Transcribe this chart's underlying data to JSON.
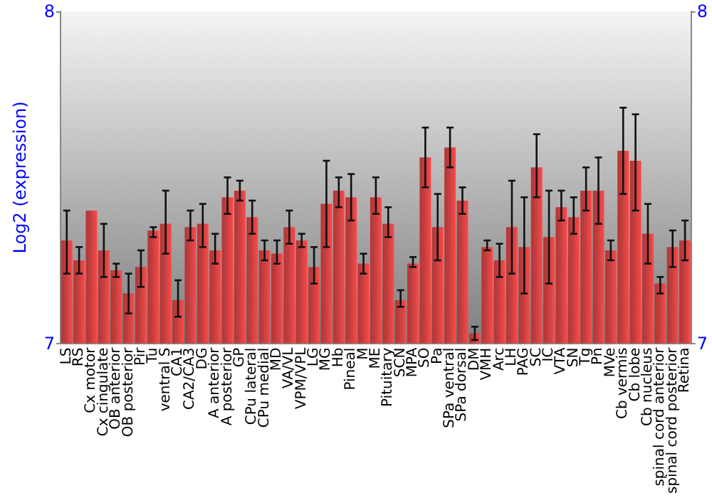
{
  "chart_data": {
    "type": "bar",
    "ylabel": "Log2 (expression)",
    "categories": [
      "LS",
      "RS",
      "Cx motor",
      "Cx cingulate",
      "OB anterior",
      "OB posterior",
      "Pir",
      "Tu",
      "ventral S",
      "CA1",
      "CA2/CA3",
      "DG",
      "A anterior",
      "A posterior",
      "GP",
      "CPu lateral",
      "CPu medial",
      "MD",
      "VA/VL",
      "VPM/VPL",
      "LG",
      "MG",
      "Hb",
      "Pineal",
      "M",
      "ME",
      "Pituitary",
      "SCN",
      "MPA",
      "SO",
      "Pa",
      "SPa ventral",
      "SPa dorsal",
      "DM",
      "VMH",
      "Arc",
      "LH",
      "PAG",
      "SC",
      "IC",
      "VTA",
      "SN",
      "Tg",
      "Pn",
      "MVe",
      "Cb vermis",
      "Cb lobe",
      "Cb nucleus",
      "spinal cord anterior",
      "spinal cord posterior",
      "Retina"
    ],
    "series": [
      {
        "color": "#b83434",
        "values": [
          7.31,
          7.25,
          7.4,
          7.28,
          7.22,
          7.15,
          7.23,
          7.34,
          7.36,
          7.13,
          7.35,
          7.36,
          7.28,
          7.44,
          7.46,
          7.38,
          7.28,
          7.27,
          7.35,
          7.31,
          7.23,
          7.42,
          7.46,
          7.44,
          7.24,
          7.44,
          7.36,
          7.13,
          7.24,
          7.56,
          7.35,
          7.59,
          7.43,
          7.03,
          7.29,
          7.25,
          7.35,
          7.29,
          7.53,
          7.32,
          7.41,
          7.38,
          7.46,
          7.46,
          7.28,
          7.58,
          7.55,
          7.33,
          7.18,
          7.29,
          7.31
        ],
        "errors": [
          [
            7.21,
            7.4
          ],
          [
            7.21,
            7.29
          ],
          null,
          [
            7.2,
            7.36
          ],
          [
            7.2,
            7.24
          ],
          [
            7.09,
            7.21
          ],
          [
            7.17,
            7.28
          ],
          [
            7.32,
            7.35
          ],
          [
            7.27,
            7.46
          ],
          [
            7.08,
            7.19
          ],
          [
            7.31,
            7.4
          ],
          [
            7.29,
            7.42
          ],
          [
            7.24,
            7.33
          ],
          [
            7.39,
            7.5
          ],
          [
            7.43,
            7.49
          ],
          [
            7.33,
            7.43
          ],
          [
            7.25,
            7.31
          ],
          [
            7.24,
            7.31
          ],
          [
            7.3,
            7.4
          ],
          [
            7.29,
            7.33
          ],
          [
            7.18,
            7.29
          ],
          [
            7.29,
            7.55
          ],
          [
            7.41,
            7.5
          ],
          [
            7.37,
            7.51
          ],
          [
            7.21,
            7.27
          ],
          [
            7.39,
            7.5
          ],
          [
            7.32,
            7.41
          ],
          [
            7.11,
            7.16
          ],
          [
            7.23,
            7.26
          ],
          [
            7.47,
            7.65
          ],
          [
            7.25,
            7.45
          ],
          [
            7.53,
            7.65
          ],
          [
            7.39,
            7.47
          ],
          [
            7.01,
            7.05
          ],
          [
            7.28,
            7.31
          ],
          [
            7.2,
            7.3
          ],
          [
            7.21,
            7.49
          ],
          [
            7.15,
            7.44
          ],
          [
            7.44,
            7.63
          ],
          [
            7.18,
            7.46
          ],
          [
            7.37,
            7.46
          ],
          [
            7.33,
            7.44
          ],
          [
            7.4,
            7.53
          ],
          [
            7.36,
            7.56
          ],
          [
            7.25,
            7.31
          ],
          [
            7.45,
            7.71
          ],
          [
            7.4,
            7.69
          ],
          [
            7.24,
            7.42
          ],
          [
            7.15,
            7.2
          ],
          [
            7.23,
            7.34
          ],
          [
            7.25,
            7.37
          ]
        ]
      }
    ],
    "ylim": [
      7,
      8
    ],
    "yticks": [
      7,
      8
    ],
    "y2lim": [
      7,
      8
    ],
    "y2ticks": [
      7,
      8
    ]
  }
}
